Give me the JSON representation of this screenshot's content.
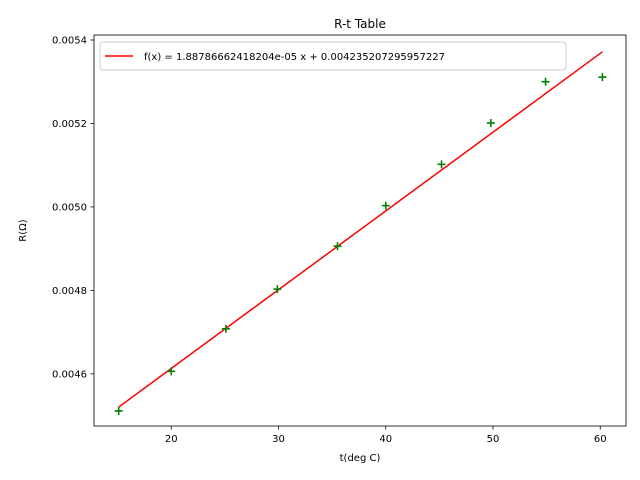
{
  "chart_data": {
    "type": "scatter",
    "title": "R-t Table",
    "xlabel": "t(deg C)",
    "ylabel": "R(Ω)",
    "xlim": [
      12.8,
      62.4
    ],
    "ylim": [
      0.004475,
      0.005412
    ],
    "x_ticks": [
      20,
      30,
      40,
      50,
      60
    ],
    "x_tick_labels": [
      "20",
      "30",
      "40",
      "50",
      "60"
    ],
    "y_ticks": [
      0.0046,
      0.0048,
      0.005,
      0.0052,
      0.0054
    ],
    "y_tick_labels": [
      "0.0046",
      "0.0048",
      "0.0050",
      "0.0052",
      "0.0054"
    ],
    "grid": false,
    "legend_position": "top-left",
    "series": [
      {
        "kind": "scatter",
        "marker": "+",
        "color": "#008000",
        "x": [
          15.1,
          20.0,
          25.1,
          29.9,
          35.5,
          40.0,
          45.2,
          49.8,
          54.9,
          60.2
        ],
        "y": [
          0.004511,
          0.004606,
          0.004708,
          0.004803,
          0.004906,
          0.005003,
          0.005102,
          0.005201,
          0.0053,
          0.005311
        ]
      },
      {
        "kind": "line",
        "name": "f(x) = 1.88786662418204e-05 x + 0.004235207295957227",
        "color": "#ff0000",
        "slope": 1.88786662418204e-05,
        "intercept": 0.004235207295957227,
        "x_range": [
          15.1,
          60.2
        ]
      }
    ]
  }
}
